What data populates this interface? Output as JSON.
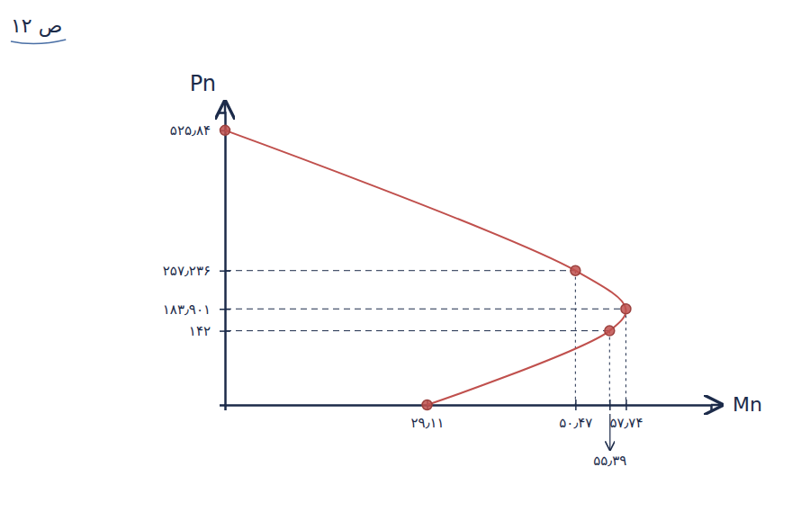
{
  "chart_data": {
    "type": "line",
    "title": "ص ۱۲",
    "x_label": "Mn",
    "y_label": "Pn",
    "x": [
      0,
      50.47,
      57.74,
      55.39,
      29.11
    ],
    "values": [
      525.84,
      257.236,
      183.901,
      142,
      0
    ],
    "color": "#c0504d",
    "marker": "circle",
    "grid": true,
    "xlim": [
      0,
      70
    ],
    "ylim": [
      0,
      560
    ],
    "xticks": [
      {
        "value": 29.11,
        "label": "۲۹٫۱۱"
      },
      {
        "value": 50.47,
        "label": "۵۰٫۴۷"
      },
      {
        "value": 55.39,
        "label": "۵۵٫۳۹"
      },
      {
        "value": 57.74,
        "label": "۵۷٫۷۴"
      }
    ],
    "yticks": [
      {
        "value": 142,
        "label": "۱۴۲"
      },
      {
        "value": 183.901,
        "label": "۱۸۳٫۹۰۱"
      },
      {
        "value": 257.236,
        "label": "۲۵۷٫۲۳۶"
      },
      {
        "value": 525.84,
        "label": "۵۲۵٫۸۴"
      }
    ]
  }
}
